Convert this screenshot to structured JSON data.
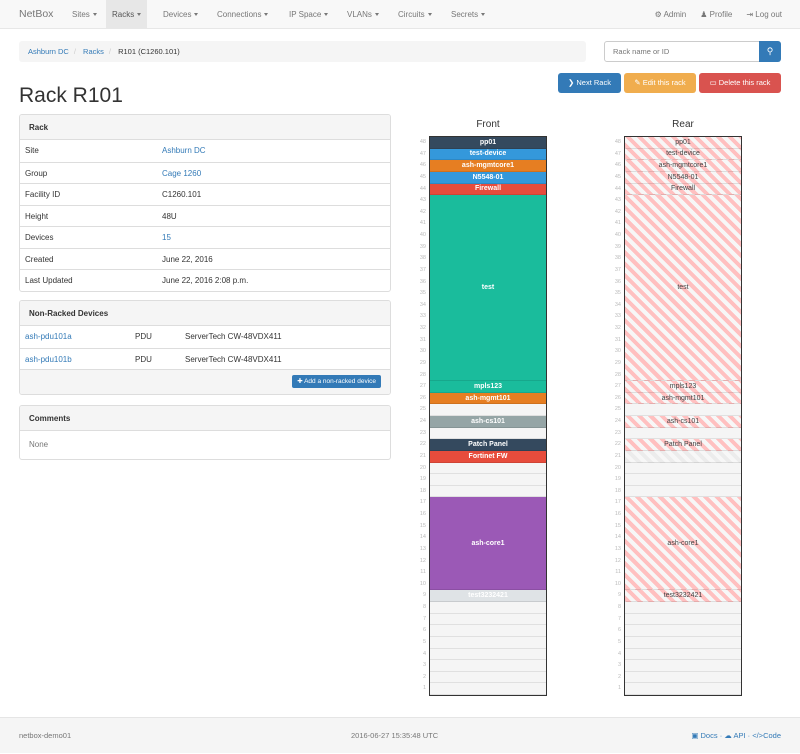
{
  "navbar": {
    "brand": "NetBox",
    "menus": [
      "Sites",
      "Racks",
      "Devices",
      "Connections",
      "IP Space",
      "VLANs",
      "Circuits",
      "Secrets"
    ],
    "active": "Racks",
    "right": [
      {
        "icon": "gear-icon",
        "label": "Admin"
      },
      {
        "icon": "user-icon",
        "label": "Profile"
      },
      {
        "icon": "logout-icon",
        "label": "Log out"
      }
    ]
  },
  "breadcrumb": [
    "Ashburn DC",
    "Racks",
    "R101 (C1260.101)"
  ],
  "search": {
    "placeholder": "Rack name or ID"
  },
  "actions": {
    "next": "Next Rack",
    "edit": "Edit this rack",
    "delete": "Delete this rack"
  },
  "colors": {
    "primary": "#337ab7",
    "warning": "#f0ad4e",
    "danger": "#d9534f"
  },
  "title": "Rack R101",
  "rack_panel": {
    "heading": "Rack",
    "rows": [
      {
        "label": "Site",
        "value": "Ashburn DC",
        "link": true
      },
      {
        "label": "Group",
        "value": "Cage 1260",
        "link": true
      },
      {
        "label": "Facility ID",
        "value": "C1260.101"
      },
      {
        "label": "Height",
        "value": "48U"
      },
      {
        "label": "Devices",
        "value": "15",
        "link": true
      },
      {
        "label": "Created",
        "value": "June 22, 2016"
      },
      {
        "label": "Last Updated",
        "value": "June 22, 2016 2:08 p.m."
      }
    ]
  },
  "nonracked": {
    "heading": "Non-Racked Devices",
    "rows": [
      {
        "name": "ash-pdu101a",
        "role": "PDU",
        "type": "ServerTech CW-48VDX411"
      },
      {
        "name": "ash-pdu101b",
        "role": "PDU",
        "type": "ServerTech CW-48VDX411"
      }
    ],
    "add_label": "Add a non-racked device"
  },
  "comments": {
    "heading": "Comments",
    "body": "None"
  },
  "elevation": {
    "front_label": "Front",
    "rear_label": "Rear",
    "height": 48,
    "devices": [
      {
        "name": "pp01",
        "top": 48,
        "size": 1,
        "color": "#34495e",
        "rear": true
      },
      {
        "name": "test-device",
        "top": 47,
        "size": 1,
        "color": "#3498db",
        "rear": true
      },
      {
        "name": "ash-mgmtcore1",
        "top": 46,
        "size": 1,
        "color": "#e67e22",
        "rear": true
      },
      {
        "name": "N5548-01",
        "top": 45,
        "size": 1,
        "color": "#3498db",
        "rear": true
      },
      {
        "name": "Firewall",
        "top": 44,
        "size": 1,
        "color": "#e74c3c",
        "rear": true
      },
      {
        "name": "test",
        "top": 43,
        "size": 16,
        "color": "#1abc9c",
        "rear": true
      },
      {
        "name": "mpls123",
        "top": 27,
        "size": 1,
        "color": "#1abc9c",
        "rear": true
      },
      {
        "name": "ash-mgmt101",
        "top": 26,
        "size": 1,
        "color": "#e67e22",
        "rear": true
      },
      {
        "name": "ash-cs101",
        "top": 24,
        "size": 1,
        "color": "#95a5a6",
        "rear": true
      },
      {
        "name": "Patch Panel",
        "top": 22,
        "size": 1,
        "color": "#34495e",
        "rear": true
      },
      {
        "name": "Fortinet FW",
        "top": 21,
        "size": 1,
        "color": "#e74c3c",
        "rear": false
      },
      {
        "name": "ash-core1",
        "top": 17,
        "size": 8,
        "color": "#9b59b6",
        "rear": true
      },
      {
        "name": "test3232421",
        "top": 9,
        "size": 1,
        "color": "#dfe3e6",
        "rear": true
      }
    ]
  },
  "footer": {
    "hostname": "netbox-demo01",
    "time": "2016-06-27 15:35:48 UTC",
    "links": [
      "Docs",
      "API",
      "Code"
    ]
  }
}
